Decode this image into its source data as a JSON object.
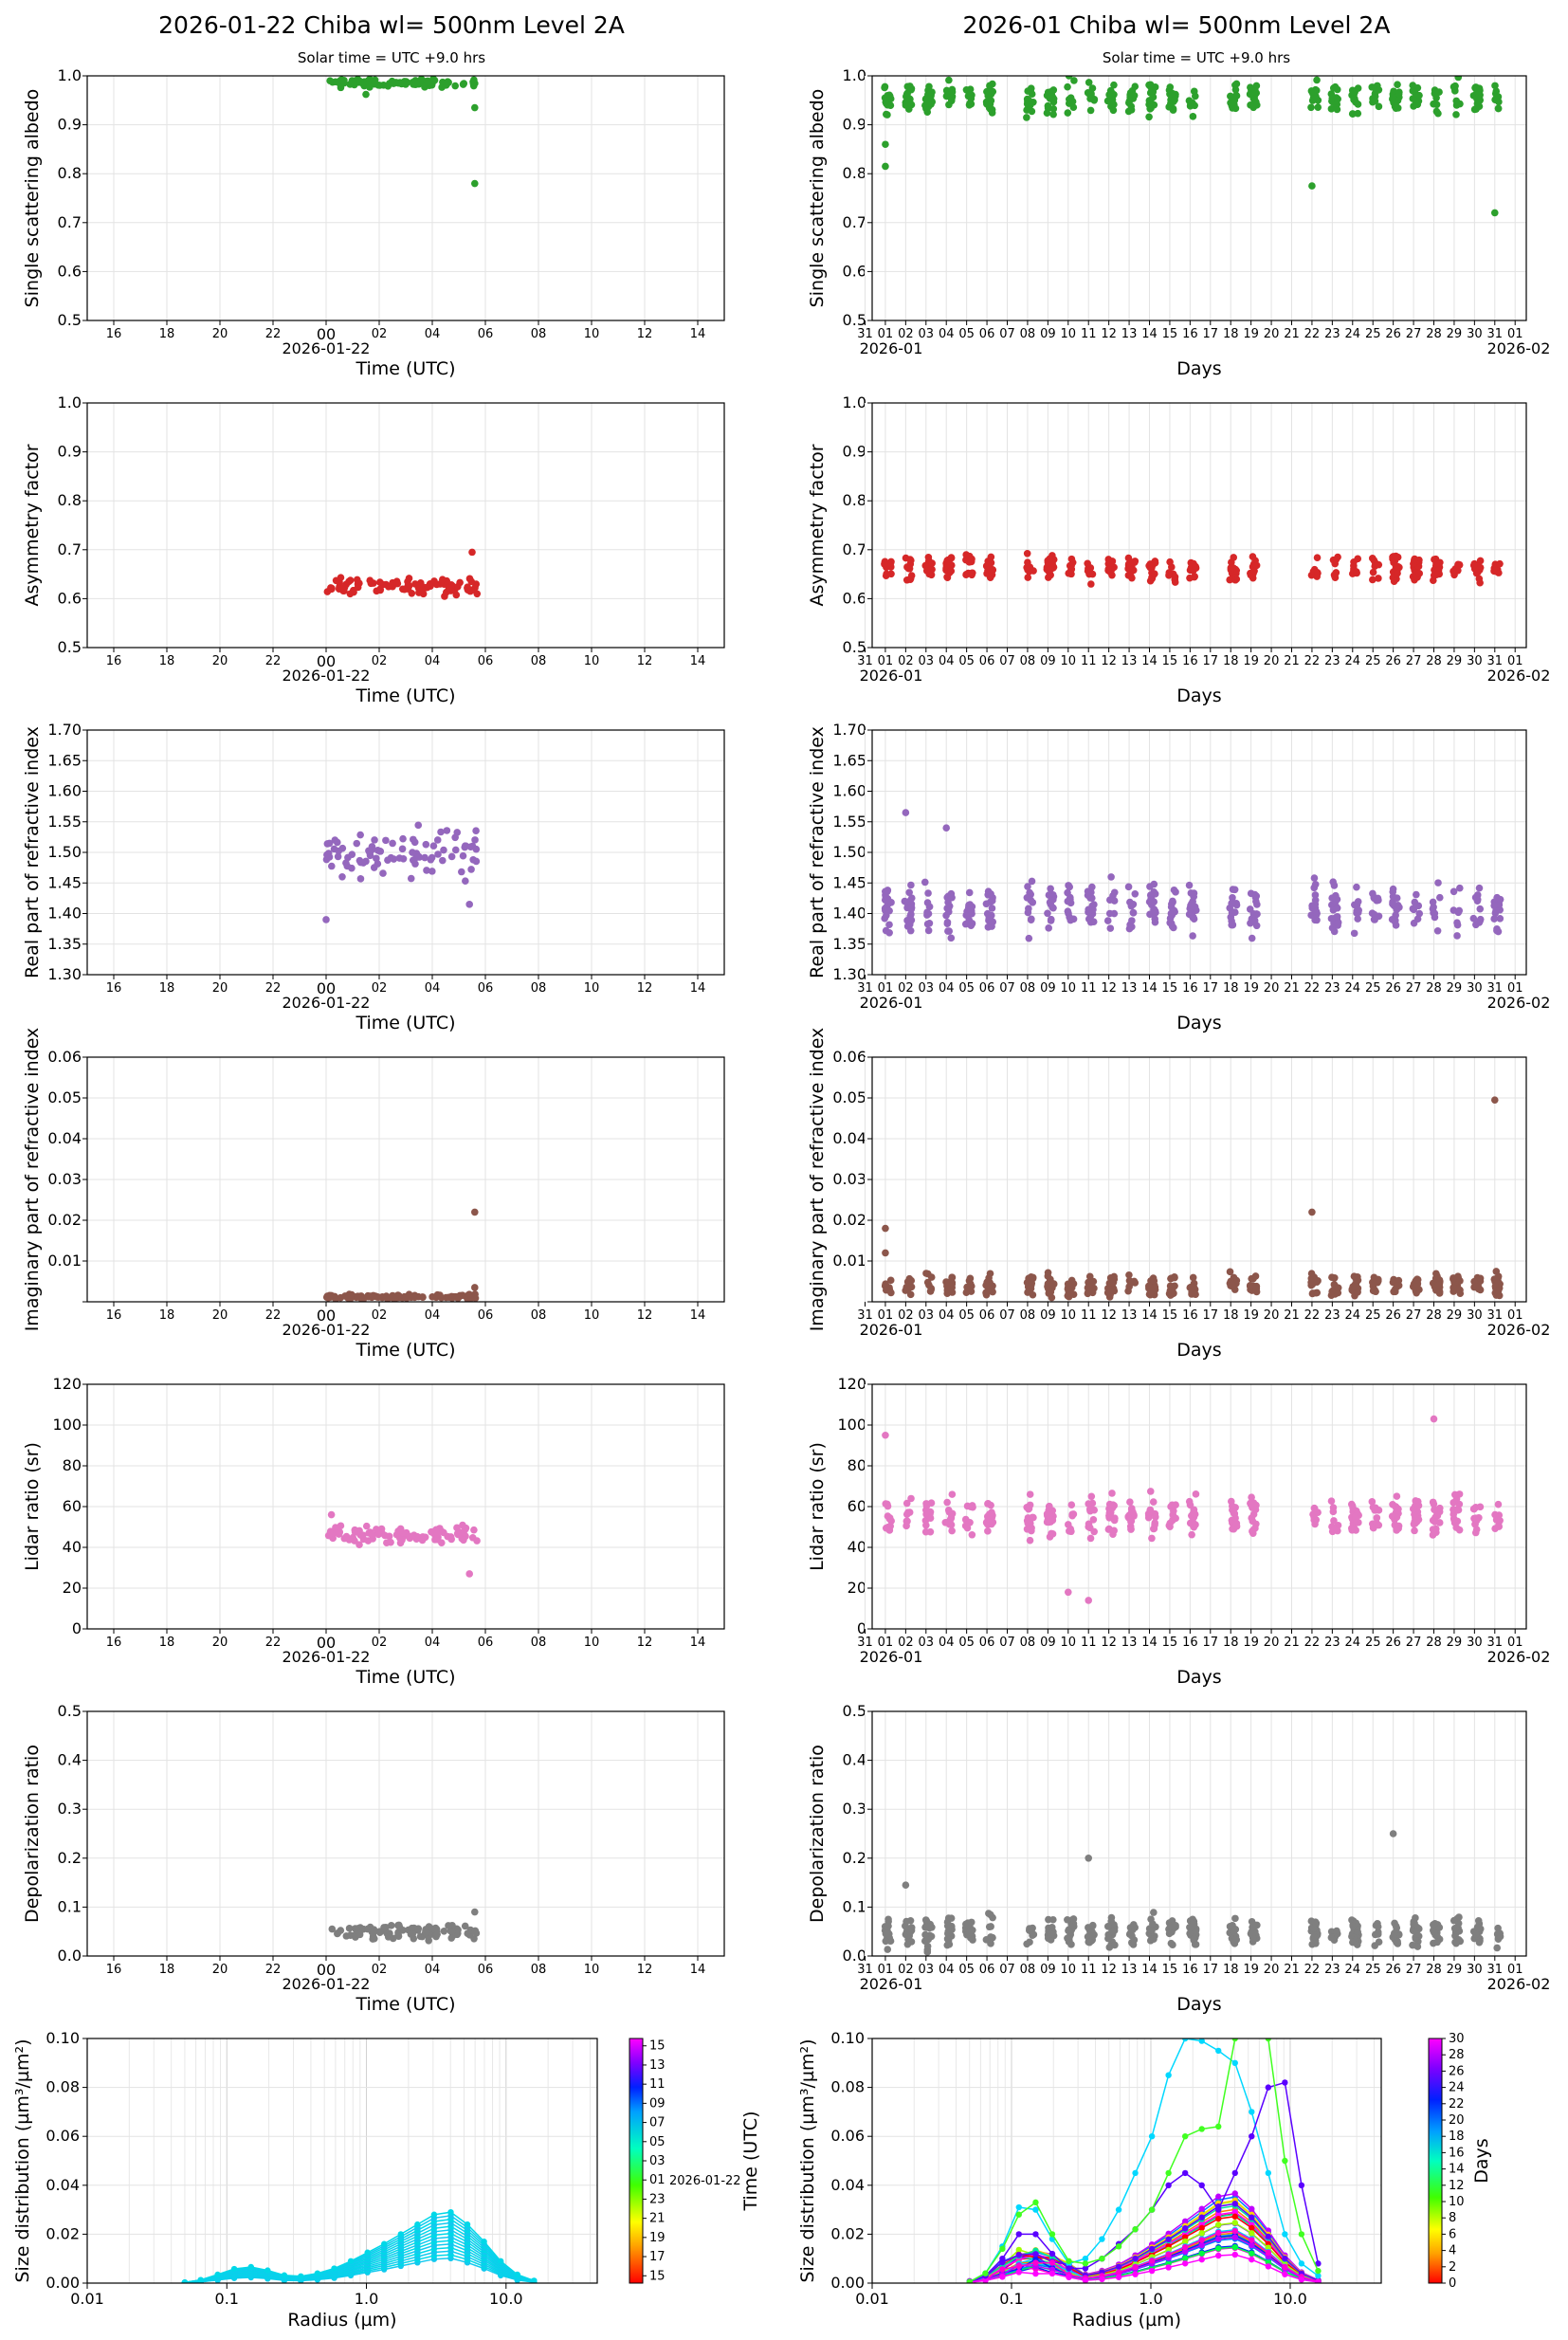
{
  "figure": {
    "left_title": "2026-01-22  Chiba  wl= 500nm  Level 2A",
    "right_title": "2026-01  Chiba  wl= 500nm  Level 2A",
    "left_subtitle": "Solar time = UTC +9.0 hrs",
    "right_subtitle": "Solar time = UTC +9.0 hrs"
  },
  "colors": {
    "ssa": "#2ca02c",
    "asym": "#d62728",
    "real": "#9467bd",
    "imag": "#8c564b",
    "lidar": "#e377c2",
    "depol": "#7f7f7f"
  },
  "axes": {
    "daily_x_ticks": [
      "16",
      "18",
      "20",
      "22",
      "00",
      "02",
      "04",
      "06",
      "08",
      "10",
      "12",
      "14"
    ],
    "daily_date": "2026-01-22",
    "daily_xlabel": "Time (UTC)",
    "monthly_x_ticks": [
      "31",
      "01",
      "02",
      "03",
      "04",
      "05",
      "06",
      "07",
      "08",
      "09",
      "10",
      "11",
      "12",
      "13",
      "14",
      "15",
      "16",
      "17",
      "18",
      "19",
      "20",
      "21",
      "22",
      "23",
      "24",
      "25",
      "26",
      "27",
      "28",
      "29",
      "30",
      "31",
      "01"
    ],
    "monthly_start_label": "2026-01",
    "monthly_end_label": "2026-02",
    "monthly_xlabel": "Days",
    "size_xlabel": "Radius (µm)",
    "size_x_ticks": [
      "0.01",
      "0.1",
      "1.0",
      "10.0"
    ],
    "size_ylabel": "Size distribution (µm³/µm²)"
  },
  "chart_data": [
    {
      "id": "ssa",
      "type": "scatter",
      "ylabel": "Single scattering albedo",
      "ylim": [
        0.5,
        1.0
      ],
      "yticks": [
        "0.5",
        "0.6",
        "0.7",
        "0.8",
        "0.9",
        "1.0"
      ],
      "daily": {
        "start": 0.0,
        "end": 5.7,
        "center": 0.985,
        "spread": 0.012,
        "outliers": [
          [
            5.6,
            0.78
          ],
          [
            5.6,
            0.935
          ],
          [
            1.5,
            0.962
          ]
        ]
      },
      "monthly": {
        "center": 0.955,
        "spread": 0.045,
        "low_days": [
          10,
          27,
          29
        ],
        "outliers": [
          [
            1.0,
            0.86
          ],
          [
            1.0,
            0.815
          ],
          [
            22.0,
            0.775
          ],
          [
            31.0,
            0.72
          ]
        ]
      }
    },
    {
      "id": "asym",
      "type": "scatter",
      "ylabel": "Asymmetry factor",
      "ylim": [
        0.5,
        1.0
      ],
      "yticks": [
        "0.5",
        "0.6",
        "0.7",
        "0.8",
        "0.9",
        "1.0"
      ],
      "daily": {
        "start": 0.0,
        "end": 5.7,
        "center": 0.625,
        "spread": 0.025,
        "outliers": [
          [
            5.5,
            0.695
          ]
        ]
      },
      "monthly": {
        "center": 0.66,
        "spread": 0.04,
        "outliers": []
      }
    },
    {
      "id": "real",
      "type": "scatter",
      "ylabel": "Real part of refractive index",
      "ylim": [
        1.3,
        1.7
      ],
      "yticks": [
        "1.30",
        "1.35",
        "1.40",
        "1.45",
        "1.50",
        "1.55",
        "1.60",
        "1.65",
        "1.70"
      ],
      "daily": {
        "start": 0.0,
        "end": 5.7,
        "center": 1.5,
        "spread": 0.055,
        "outliers": [
          [
            0.0,
            1.39
          ],
          [
            5.4,
            1.415
          ]
        ]
      },
      "monthly": {
        "center": 1.41,
        "spread": 0.06,
        "outliers": [
          [
            2.0,
            1.565
          ],
          [
            4.0,
            1.54
          ]
        ]
      }
    },
    {
      "id": "imag",
      "type": "scatter",
      "ylabel": "Imaginary part of refractive index",
      "ylim": [
        0.0,
        0.06
      ],
      "yticks": [
        "",
        "0.01",
        "0.02",
        "0.03",
        "0.04",
        "0.05",
        "0.06"
      ],
      "daily": {
        "start": 0.0,
        "end": 5.7,
        "center": 0.0012,
        "spread": 0.0008,
        "outliers": [
          [
            5.6,
            0.022
          ],
          [
            5.6,
            0.0035
          ]
        ]
      },
      "monthly": {
        "center": 0.004,
        "spread": 0.004,
        "outliers": [
          [
            31.0,
            0.0495
          ],
          [
            22.0,
            0.022
          ],
          [
            1.0,
            0.018
          ],
          [
            1.0,
            0.012
          ]
        ]
      }
    },
    {
      "id": "lidar",
      "type": "scatter",
      "ylabel": "Lidar ratio (sr)",
      "ylim": [
        0,
        120
      ],
      "yticks": [
        "0",
        "20",
        "40",
        "60",
        "80",
        "100",
        "120"
      ],
      "daily": {
        "start": 0.0,
        "end": 5.7,
        "center": 46,
        "spread": 6,
        "outliers": [
          [
            5.4,
            27
          ],
          [
            0.2,
            56
          ]
        ]
      },
      "monthly": {
        "center": 55,
        "spread": 14,
        "outliers": [
          [
            28.0,
            103
          ],
          [
            1.0,
            95
          ],
          [
            11.0,
            14
          ],
          [
            10.0,
            18
          ]
        ]
      }
    },
    {
      "id": "depol",
      "type": "scatter",
      "ylabel": "Depolarization ratio",
      "ylim": [
        0.0,
        0.5
      ],
      "yticks": [
        "0.0",
        "0.1",
        "0.2",
        "0.3",
        "0.4",
        "0.5"
      ],
      "daily": {
        "start": 0.0,
        "end": 5.7,
        "center": 0.05,
        "spread": 0.025,
        "outliers": [
          [
            5.6,
            0.09
          ]
        ]
      },
      "monthly": {
        "center": 0.05,
        "spread": 0.045,
        "outliers": [
          [
            26.0,
            0.25
          ],
          [
            11.0,
            0.2
          ],
          [
            2.0,
            0.145
          ]
        ]
      }
    },
    {
      "id": "size",
      "type": "line",
      "ylabel": "Size distribution (µm³/µm²)",
      "xlabel": "Radius (µm)",
      "ylim": [
        0.0,
        0.1
      ],
      "yticks": [
        "0.00",
        "0.02",
        "0.04",
        "0.06",
        "0.08",
        "0.10"
      ],
      "radius_bins": [
        0.05,
        0.065,
        0.086,
        0.113,
        0.149,
        0.196,
        0.258,
        0.339,
        0.446,
        0.588,
        0.773,
        1.018,
        1.339,
        1.763,
        2.32,
        3.053,
        4.018,
        5.287,
        6.958,
        9.157,
        12.05,
        15.86
      ],
      "daily_max_curve": [
        0.0003,
        0.0013,
        0.0035,
        0.0058,
        0.0066,
        0.0052,
        0.0032,
        0.0028,
        0.004,
        0.006,
        0.009,
        0.0125,
        0.016,
        0.02,
        0.024,
        0.028,
        0.029,
        0.024,
        0.017,
        0.009,
        0.0035,
        0.001
      ],
      "monthly_extreme_curves": [
        [
          0.0005,
          0.004,
          0.015,
          0.031,
          0.03,
          0.018,
          0.008,
          0.01,
          0.018,
          0.03,
          0.045,
          0.06,
          0.085,
          0.1,
          0.099,
          0.095,
          0.09,
          0.07,
          0.045,
          0.02,
          0.008,
          0.003
        ],
        [
          0.0005,
          0.003,
          0.01,
          0.02,
          0.02,
          0.012,
          0.006,
          0.006,
          0.01,
          0.016,
          0.022,
          0.03,
          0.04,
          0.045,
          0.04,
          0.03,
          0.045,
          0.06,
          0.08,
          0.082,
          0.04,
          0.008
        ],
        [
          0.0005,
          0.004,
          0.014,
          0.028,
          0.033,
          0.02,
          0.009,
          0.008,
          0.01,
          0.015,
          0.022,
          0.03,
          0.045,
          0.06,
          0.063,
          0.064,
          0.1,
          0.12,
          0.1,
          0.05,
          0.02,
          0.005
        ]
      ],
      "daily_colorbar": {
        "ticks": [
          "15",
          "13",
          "11",
          "09",
          "07",
          "05",
          "03",
          "01",
          "23",
          "21",
          "19",
          "17",
          "15"
        ],
        "date_note": "2026-01-22",
        "label": "Time (UTC)"
      },
      "monthly_colorbar": {
        "ticks": [
          "30",
          "28",
          "26",
          "24",
          "22",
          "20",
          "18",
          "16",
          "14",
          "12",
          "10",
          "8",
          "6",
          "4",
          "2",
          "0"
        ],
        "label": "Days"
      }
    }
  ]
}
